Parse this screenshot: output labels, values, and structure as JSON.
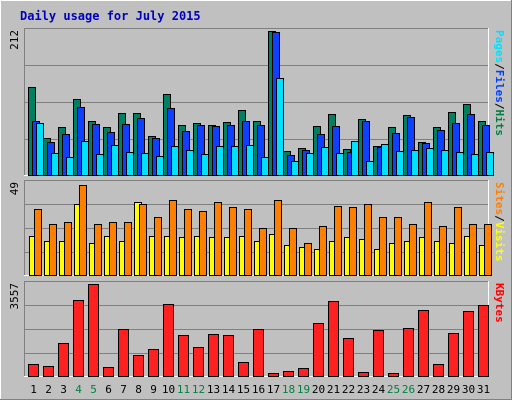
{
  "chart_data": {
    "type": "bar",
    "title": "Daily usage for July 2015",
    "categories": [
      "1",
      "2",
      "3",
      "4",
      "5",
      "6",
      "7",
      "8",
      "9",
      "10",
      "11",
      "12",
      "13",
      "14",
      "15",
      "16",
      "17",
      "18",
      "19",
      "20",
      "21",
      "22",
      "23",
      "24",
      "25",
      "26",
      "27",
      "28",
      "29",
      "30",
      "31"
    ],
    "weekend_days": [
      "4",
      "5",
      "11",
      "12",
      "18",
      "19",
      "25",
      "26"
    ],
    "panels": [
      {
        "id": "top",
        "ymax_label": "212",
        "ylim": [
          0,
          212
        ],
        "side_labels": [
          {
            "text": "Pages",
            "color": "#00e0ff"
          },
          {
            "text": "/",
            "color": "#000000"
          },
          {
            "text": "Files",
            "color": "#0040ff"
          },
          {
            "text": "/",
            "color": "#000000"
          },
          {
            "text": "Hits",
            "color": "#008040"
          }
        ],
        "series": [
          {
            "name": "Hits",
            "color": "#008060",
            "values": [
              129,
              55,
              70,
              112,
              80,
              70,
              92,
              92,
              57,
              119,
              73,
              77,
              73,
              78,
              95,
              80,
              212,
              35,
              40,
              72,
              90,
              38,
              82,
              42,
              70,
              88,
              48,
              70,
              93,
              105,
              80
            ]
          },
          {
            "name": "Files",
            "color": "#1040ff",
            "values": [
              80,
              48,
              61,
              100,
              75,
              63,
              75,
              84,
              55,
              98,
              65,
              74,
              72,
              74,
              80,
              74,
              210,
              30,
              37,
              60,
              72,
              34,
              80,
              41,
              62,
              86,
              47,
              66,
              77,
              90,
              73
            ]
          },
          {
            "name": "Pages",
            "color": "#00e0ff",
            "values": [
              77,
              33,
              26,
              50,
              31,
              44,
              34,
              33,
              28,
              42,
              37,
              31,
              43,
              43,
              44,
              26,
              143,
              20,
              33,
              41,
              33,
              50,
              21,
              45,
              36,
              37,
              40,
              37,
              34,
              31,
              34
            ]
          }
        ]
      },
      {
        "id": "middle",
        "ymax_label": "49",
        "ylim": [
          0,
          49
        ],
        "side_labels": [
          {
            "text": "Sites",
            "color": "#ff8000"
          },
          {
            "text": "/",
            "color": "#000000"
          },
          {
            "text": "Visits",
            "color": "#ffff00"
          }
        ],
        "series": [
          {
            "name": "Visits",
            "color": "#ffff00",
            "values": [
              21,
              18,
              18,
              38,
              17,
              21,
              18,
              39,
              21,
              21,
              20,
              21,
              20,
              20,
              21,
              18,
              22,
              16,
              15,
              14,
              18,
              20,
              19,
              14,
              17,
              18,
              20,
              18,
              17,
              21,
              16
            ]
          },
          {
            "name": "Sites",
            "color": "#ff8000",
            "values": [
              35,
              27,
              28,
              48,
              27,
              28,
              28,
              38,
              31,
              40,
              35,
              34,
              39,
              36,
              35,
              25,
              40,
              25,
              17,
              26,
              37,
              36,
              38,
              31,
              31,
              27,
              39,
              26,
              36,
              27,
              27
            ]
          }
        ]
      },
      {
        "id": "bottom",
        "ymax_label": "3557",
        "ylim": [
          0,
          3557
        ],
        "side_labels": [
          {
            "text": "KBytes",
            "color": "#ff0000"
          }
        ],
        "series": [
          {
            "name": "KBytes",
            "color": "#ff2020",
            "values": [
              480,
              380,
              1270,
              2950,
              3557,
              360,
              1810,
              810,
              1050,
              2800,
              1580,
              1140,
              1620,
              1580,
              560,
              1830,
              110,
              180,
              300,
              2040,
              2900,
              1470,
              170,
              1780,
              130,
              1850,
              2560,
              470,
              1650,
              2520,
              2760
            ]
          }
        ]
      }
    ]
  }
}
